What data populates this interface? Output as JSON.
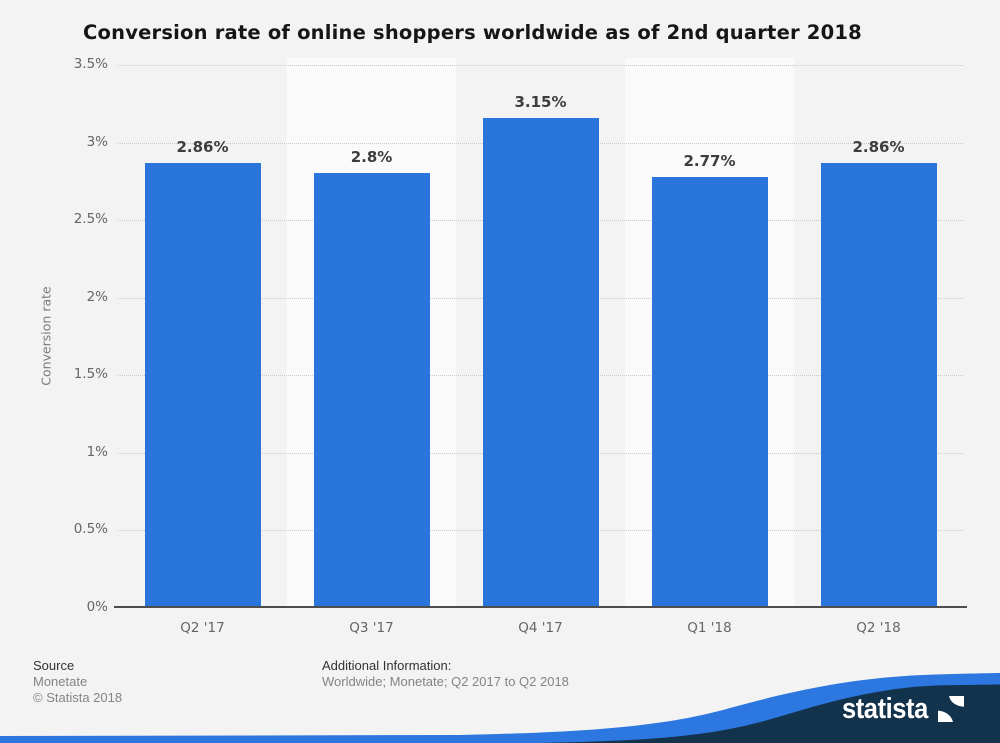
{
  "chart_data": {
    "type": "bar",
    "title": "Conversion rate of online shoppers worldwide as of 2nd quarter 2018",
    "categories": [
      "Q2 '17",
      "Q3 '17",
      "Q4 '17",
      "Q1 '18",
      "Q2 '18"
    ],
    "values": [
      2.86,
      2.8,
      3.15,
      2.77,
      2.86
    ],
    "value_labels": [
      "2.86%",
      "2.8%",
      "3.15%",
      "2.77%",
      "2.86%"
    ],
    "xlabel": "",
    "ylabel": "Conversion rate",
    "ylim": [
      0,
      3.5
    ],
    "ytick_step": 0.5,
    "ytick_labels": [
      "0%",
      "0.5%",
      "1%",
      "1.5%",
      "2%",
      "2.5%",
      "3%",
      "3.5%"
    ],
    "grid": "horizontal-dotted",
    "legend": "none",
    "bar_color": "#2a75dc",
    "highlight_band_color": "#fafafa",
    "highlighted_band_indices": [
      1,
      3
    ]
  },
  "footer": {
    "source_label": "Source",
    "source_value": "Monetate",
    "copyright": "© Statista 2018",
    "additional_info_label": "Additional Information:",
    "additional_info_value": "Worldwide; Monetate; Q2 2017 to Q2 2018"
  },
  "branding": {
    "logo_text": "statista",
    "wave_blue": "#2c77e0",
    "navy": "#13324b"
  },
  "colors": {
    "page_background": "#f3f3f3",
    "title_text": "#161616",
    "axis_text": "#666666",
    "value_label_text": "#3d3d3d",
    "gridline": "#c9c9c9",
    "axis_line": "#4d4d4d"
  }
}
